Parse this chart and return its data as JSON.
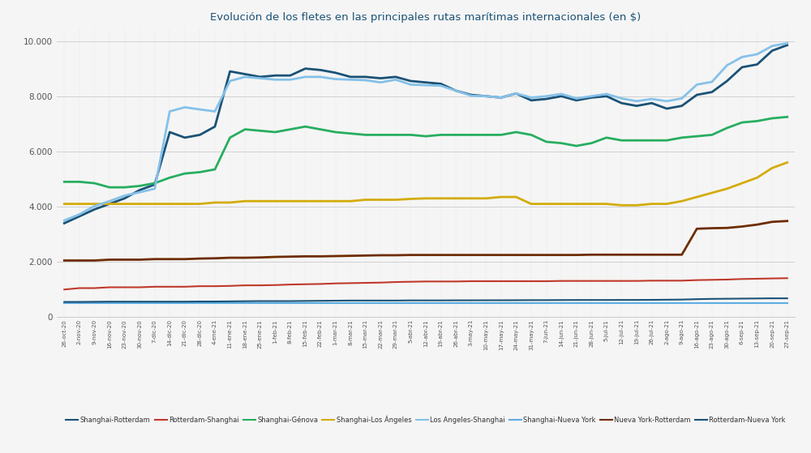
{
  "title": "Evolución de los fletes en las principales rutas marítimas internacionales (en $)",
  "title_color": "#1a5276",
  "background_color": "#f5f5f5",
  "ylim": [
    0,
    10500
  ],
  "yticks": [
    0,
    2000,
    4000,
    6000,
    8000,
    10000
  ],
  "ytick_labels": [
    "0",
    "2.000",
    "4.000",
    "6.000",
    "8.000",
    "10.000"
  ],
  "series": [
    {
      "label": "Shanghai-Rotterdam",
      "color": "#1a5276",
      "linewidth": 2.0,
      "values": [
        3400,
        3650,
        3900,
        4100,
        4300,
        4600,
        4800,
        6700,
        6500,
        6600,
        6900,
        8900,
        8800,
        8700,
        8750,
        8750,
        9000,
        8950,
        8850,
        8700,
        8700,
        8650,
        8700,
        8550,
        8500,
        8450,
        8200,
        8050,
        8000,
        7950,
        8100,
        7850,
        7900,
        8000,
        7850,
        7950,
        8000,
        7750,
        7650,
        7750,
        7550,
        7650,
        8050,
        8150,
        8550,
        9050,
        9150,
        9650,
        9850
      ]
    },
    {
      "label": "Rotterdam-Shanghai",
      "color": "#c0392b",
      "linewidth": 1.5,
      "values": [
        1000,
        1050,
        1050,
        1080,
        1080,
        1080,
        1100,
        1100,
        1100,
        1120,
        1120,
        1130,
        1150,
        1150,
        1160,
        1180,
        1190,
        1200,
        1220,
        1230,
        1240,
        1250,
        1270,
        1280,
        1290,
        1290,
        1290,
        1300,
        1300,
        1300,
        1300,
        1300,
        1300,
        1310,
        1310,
        1310,
        1310,
        1310,
        1310,
        1320,
        1320,
        1320,
        1340,
        1350,
        1360,
        1380,
        1390,
        1400,
        1410
      ]
    },
    {
      "label": "Shanghai-Génova",
      "color": "#27ae60",
      "linewidth": 2.0,
      "values": [
        4900,
        4900,
        4850,
        4700,
        4700,
        4750,
        4850,
        5050,
        5200,
        5250,
        5350,
        6500,
        6800,
        6750,
        6700,
        6800,
        6900,
        6800,
        6700,
        6650,
        6600,
        6600,
        6600,
        6600,
        6550,
        6600,
        6600,
        6600,
        6600,
        6600,
        6700,
        6600,
        6350,
        6300,
        6200,
        6300,
        6500,
        6400,
        6400,
        6400,
        6400,
        6500,
        6550,
        6600,
        6850,
        7050,
        7100,
        7200,
        7250
      ]
    },
    {
      "label": "Shanghai-Los Ángeles",
      "color": "#d4ac0d",
      "linewidth": 2.0,
      "values": [
        4100,
        4100,
        4100,
        4100,
        4100,
        4100,
        4100,
        4100,
        4100,
        4100,
        4150,
        4150,
        4200,
        4200,
        4200,
        4200,
        4200,
        4200,
        4200,
        4200,
        4250,
        4250,
        4250,
        4280,
        4300,
        4300,
        4300,
        4300,
        4300,
        4350,
        4350,
        4100,
        4100,
        4100,
        4100,
        4100,
        4100,
        4050,
        4050,
        4100,
        4100,
        4200,
        4350,
        4500,
        4650,
        4850,
        5050,
        5400,
        5600
      ]
    },
    {
      "label": "Los Angeles-Shanghai",
      "color": "#85c1e9",
      "linewidth": 2.0,
      "values": [
        3500,
        3720,
        4020,
        4200,
        4400,
        4520,
        4650,
        7450,
        7600,
        7520,
        7450,
        8550,
        8700,
        8650,
        8600,
        8600,
        8700,
        8700,
        8620,
        8600,
        8580,
        8500,
        8600,
        8420,
        8400,
        8380,
        8200,
        8020,
        8000,
        7950,
        8100,
        7950,
        8000,
        8080,
        7920,
        8000,
        8080,
        7920,
        7820,
        7900,
        7820,
        7920,
        8420,
        8520,
        9120,
        9420,
        9520,
        9820,
        9920
      ]
    },
    {
      "label": "Shanghai-Nueva York",
      "color": "#5dade2",
      "linewidth": 1.5,
      "values": [
        500,
        500,
        500,
        500,
        500,
        500,
        500,
        500,
        500,
        500,
        500,
        500,
        500,
        500,
        500,
        500,
        500,
        500,
        500,
        500,
        500,
        500,
        500,
        500,
        500,
        500,
        500,
        500,
        500,
        500,
        500,
        500,
        500,
        500,
        500,
        500,
        500,
        500,
        500,
        500,
        500,
        500,
        500,
        500,
        500,
        500,
        500,
        500,
        500
      ]
    },
    {
      "label": "Nueva York-Rotterdam",
      "color": "#6e2c00",
      "linewidth": 2.0,
      "values": [
        2050,
        2050,
        2050,
        2080,
        2080,
        2080,
        2100,
        2100,
        2100,
        2120,
        2130,
        2150,
        2150,
        2160,
        2180,
        2190,
        2200,
        2200,
        2210,
        2220,
        2230,
        2240,
        2240,
        2250,
        2250,
        2250,
        2250,
        2250,
        2250,
        2250,
        2250,
        2250,
        2250,
        2250,
        2250,
        2260,
        2260,
        2260,
        2260,
        2260,
        2260,
        2260,
        3200,
        3220,
        3230,
        3280,
        3350,
        3450,
        3480
      ]
    },
    {
      "label": "Rotterdam-Nueva York",
      "color": "#1a5276",
      "linewidth": 1.5,
      "values": [
        550,
        550,
        555,
        560,
        560,
        560,
        560,
        560,
        560,
        565,
        565,
        570,
        575,
        580,
        580,
        580,
        585,
        590,
        595,
        600,
        600,
        600,
        600,
        605,
        605,
        605,
        608,
        608,
        610,
        610,
        612,
        615,
        615,
        618,
        620,
        620,
        620,
        622,
        622,
        625,
        630,
        635,
        650,
        660,
        665,
        670,
        675,
        680,
        680
      ]
    }
  ],
  "x_labels": [
    "26-oct-20",
    "2-nov-20",
    "9-nov-20",
    "16-nov-20",
    "23-nov-20",
    "30-nov-20",
    "7-dic-20",
    "14-dic-20",
    "21-dic-20",
    "28-dic-20",
    "4-ene-21",
    "11-ene-21",
    "18-ene-21",
    "25-ene-21",
    "1-feb-21",
    "8-feb-21",
    "15-feb-21",
    "22-feb-21",
    "1-mar-21",
    "8-mar-21",
    "15-mar-21",
    "22-mar-21",
    "29-mar-21",
    "5-abr-21",
    "12-abr-21",
    "19-abr-21",
    "26-abr-21",
    "3-may-21",
    "10-may-21",
    "17-may-21",
    "24-may-21",
    "31-may-21",
    "7-jun-21",
    "14-jun-21",
    "21-jun-21",
    "28-jun-21",
    "5-jul-21",
    "12-jul-21",
    "19-jul-21",
    "26-jul-21",
    "2-ago-21",
    "9-ago-21",
    "16-ago-21",
    "23-ago-21",
    "30-ago-21",
    "6-sep-21",
    "13-sep-21",
    "20-sep-21",
    "27-sep-21"
  ],
  "legend_entries": [
    {
      "label": "Shanghai-Rotterdam",
      "color": "#1a5276"
    },
    {
      "label": "Rotterdam-Shanghai",
      "color": "#c0392b"
    },
    {
      "label": "Shanghai-Génova",
      "color": "#27ae60"
    },
    {
      "label": "Shanghai-Los Ángeles",
      "color": "#d4ac0d"
    },
    {
      "label": "Los Angeles-Shanghai",
      "color": "#85c1e9"
    },
    {
      "label": "Shanghai-Nueva York",
      "color": "#5dade2"
    },
    {
      "label": "Nueva York-Rotterdam",
      "color": "#6e2c00"
    },
    {
      "label": "Rotterdam-Nueva York",
      "color": "#1a5276"
    }
  ]
}
